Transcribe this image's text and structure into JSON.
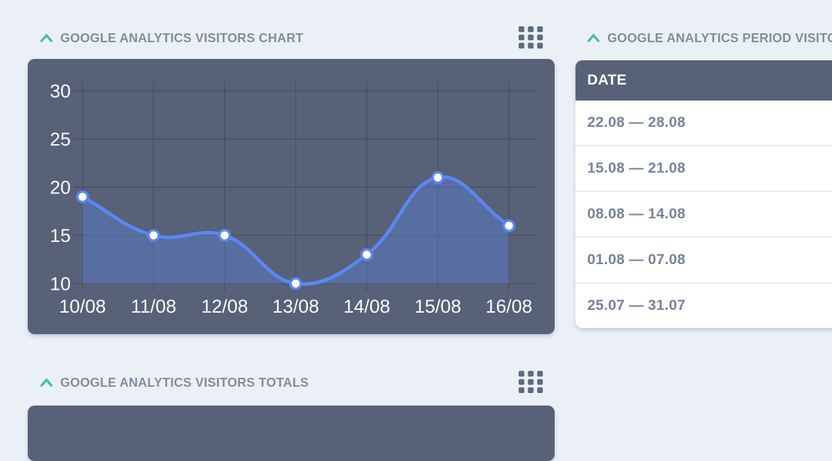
{
  "sections": {
    "visitors_chart": {
      "title": "GOOGLE ANALYTICS VISITORS CHART"
    },
    "visitors_totals": {
      "title": "GOOGLE ANALYTICS VISITORS TOTALS"
    },
    "period_visitors": {
      "title": "GOOGLE ANALYTICS PERIOD VISITORS"
    }
  },
  "period_table": {
    "header": "DATE",
    "rows": [
      "22.08 — 28.08",
      "15.08 — 21.08",
      "08.08 — 14.08",
      "01.08 — 07.08",
      "25.07 — 31.07"
    ]
  },
  "icons": {
    "collapse": "chevron-up",
    "widget_handle": "grid-dots-3x3"
  },
  "colors": {
    "page_bg": "#EAF0F5",
    "panel_slate": "#576177",
    "title_text": "#7E8BA1",
    "accent_teal": "#49B8B1",
    "icon_slate": "#5D6B84",
    "row_text": "#76839A",
    "row_separator": "#E7EBF0",
    "chart_line": "#5B87F2",
    "chart_fill": "rgba(91,135,242,0.35)",
    "chart_grid": "rgba(30,40,55,0.25)",
    "chart_text": "#FCFDFE"
  },
  "chart_data": {
    "type": "area",
    "title": "GOOGLE ANALYTICS VISITORS CHART",
    "categories": [
      "10/08",
      "11/08",
      "12/08",
      "13/08",
      "14/08",
      "15/08",
      "16/08"
    ],
    "values": [
      19,
      15,
      15,
      10,
      13,
      21,
      16
    ],
    "xlabel": "",
    "ylabel": "",
    "ylim": [
      10,
      30
    ],
    "yticks": [
      10,
      15,
      20,
      25,
      30
    ],
    "grid": true,
    "legend": "none",
    "smooth": true,
    "point_style": "white-circle-blue-ring"
  }
}
